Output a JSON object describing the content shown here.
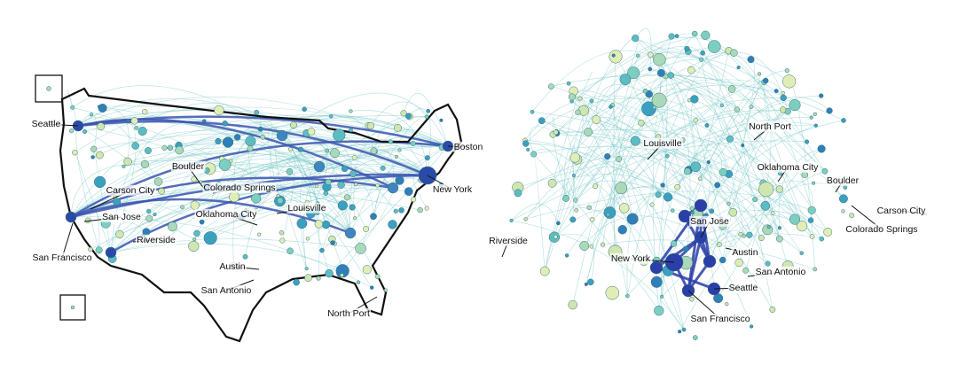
{
  "map": {
    "labels": [
      "Seattle",
      "Boston",
      "Boulder",
      "Carson City",
      "Colorado Springs",
      "New York",
      "San Jose",
      "Oklahoma City",
      "Louisville",
      "Riverside",
      "San Francisco",
      "Austin",
      "San Antonio",
      "North Port"
    ]
  },
  "network": {
    "labels": [
      "Louisville",
      "North Port",
      "Oklahoma City",
      "Boulder",
      "Carson City",
      "Colorado Springs",
      "Riverside",
      "San Jose",
      "Austin",
      "New York",
      "San Antonio",
      "Seattle",
      "San Francisco"
    ]
  }
}
